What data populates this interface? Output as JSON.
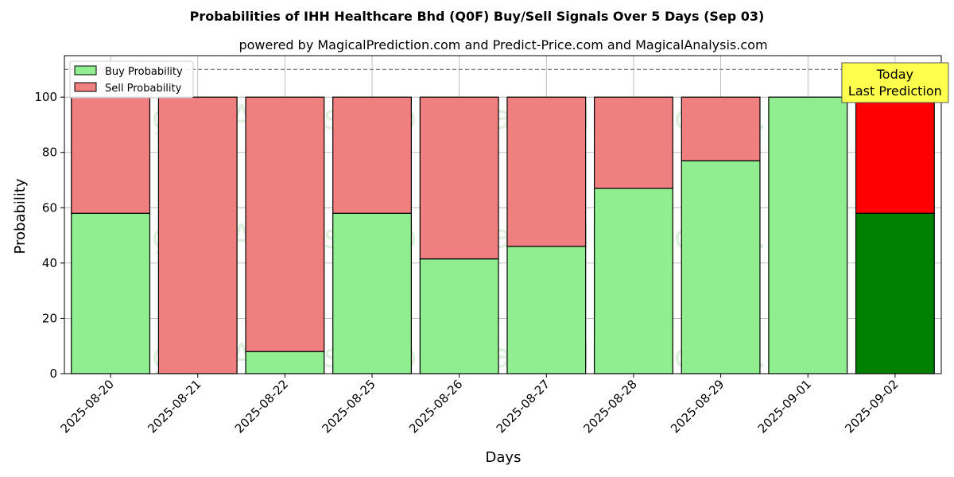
{
  "chart_data": {
    "type": "bar",
    "stacked": true,
    "title": "Probabilities of IHH Healthcare Bhd (Q0F) Buy/Sell Signals Over 5 Days (Sep 03)",
    "subtitle": "powered by MagicalPrediction.com and Predict-Price.com and MagicalAnalysis.com",
    "xlabel": "Days",
    "ylabel": "Probability",
    "ylim": [
      0,
      115
    ],
    "yticks": [
      0,
      20,
      40,
      60,
      80,
      100
    ],
    "reference_line": 110,
    "grid": true,
    "legend_placement": "top-left",
    "categories": [
      "2025-08-20",
      "2025-08-21",
      "2025-08-22",
      "2025-08-25",
      "2025-08-26",
      "2025-08-27",
      "2025-08-28",
      "2025-08-29",
      "2025-09-01",
      "2025-09-02"
    ],
    "series": [
      {
        "name": "Buy Probability",
        "color": "#90ee90",
        "values": [
          58,
          0,
          8,
          58,
          41.5,
          46,
          67,
          77,
          100,
          58
        ]
      },
      {
        "name": "Sell Probability",
        "color": "#f08080",
        "values": [
          42,
          100,
          92,
          42,
          58.5,
          54,
          33,
          23,
          0,
          42
        ]
      }
    ],
    "highlight": {
      "index": 9,
      "buy_color": "#008000",
      "sell_color": "#ff0000"
    },
    "annotation": {
      "lines": [
        "Today",
        "Last Prediction"
      ],
      "background": "#ffff4d"
    },
    "watermarks": [
      "MagicalAnalysis.com",
      "MagicalPrediction.com"
    ]
  }
}
